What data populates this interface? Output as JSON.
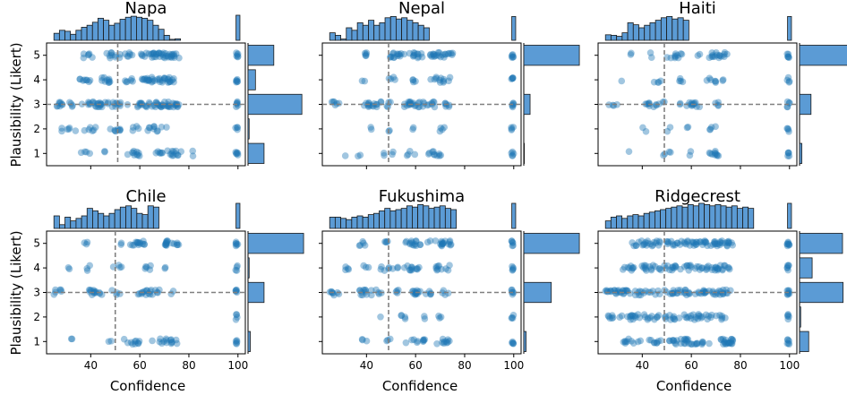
{
  "figure": {
    "ylabel": "Plausibility (Likert)",
    "xlabel": "Confidence",
    "x_ticks": [
      40,
      60,
      80,
      100
    ],
    "y_ticks": [
      1,
      2,
      3,
      4,
      5
    ]
  },
  "colors": {
    "point": "#1f77b4",
    "bar": "#5b9bd5",
    "edge": "#1a1a1a",
    "guide": "#808080"
  },
  "chart_data": [
    {
      "type": "scatter",
      "title": "Napa",
      "xlabel": "",
      "ylabel": "Plausibility (Likert)",
      "xlim": [
        22,
        103
      ],
      "ylim": [
        0.5,
        5.5
      ],
      "median_x": 51,
      "median_y": 3,
      "y_hist": {
        "1": 0.28,
        "2": 0.02,
        "3": 0.94,
        "4": 0.13,
        "5": 0.45
      },
      "x_hist": [
        0.28,
        0.4,
        0.36,
        0.24,
        0.4,
        0.52,
        0.6,
        0.72,
        0.88,
        0.8,
        0.6,
        0.68,
        0.84,
        0.92,
        0.96,
        0.92,
        0.88,
        0.8,
        0.6,
        0.44,
        0.2,
        0.04,
        0.06
      ],
      "conf_100_bar": 1.0,
      "points": [
        {
          "y": 5,
          "segments": [
            [
              37,
              41,
              6
            ],
            [
              46,
              52,
              10
            ],
            [
              54,
              57,
              6
            ],
            [
              59,
              76,
              40
            ],
            [
              99,
              100,
              6
            ]
          ]
        },
        {
          "y": 4,
          "segments": [
            [
              35,
              40,
              8
            ],
            [
              44,
              50,
              10
            ],
            [
              54,
              58,
              6
            ],
            [
              59,
              74,
              34
            ],
            [
              99,
              100,
              6
            ]
          ]
        },
        {
          "y": 3,
          "segments": [
            [
              25,
              33,
              12
            ],
            [
              36,
              53,
              32
            ],
            [
              55,
              76,
              46
            ],
            [
              99,
              100,
              6
            ]
          ]
        },
        {
          "y": 2,
          "segments": [
            [
              28,
              34,
              6
            ],
            [
              37,
              42,
              6
            ],
            [
              46,
              52,
              8
            ],
            [
              56,
              60,
              4
            ],
            [
              63,
              72,
              10
            ],
            [
              99,
              100,
              4
            ]
          ]
        },
        {
          "y": 1,
          "segments": [
            [
              36,
              40,
              4
            ],
            [
              44,
              46,
              2
            ],
            [
              55,
              60,
              10
            ],
            [
              66,
              77,
              18
            ],
            [
              80,
              82,
              2
            ],
            [
              99,
              100,
              6
            ]
          ]
        }
      ]
    },
    {
      "type": "scatter",
      "title": "Nepal",
      "xlabel": "",
      "ylabel": "",
      "xlim": [
        22,
        103
      ],
      "ylim": [
        0.5,
        5.5
      ],
      "median_x": 49,
      "median_y": 3,
      "y_hist": {
        "1": 0.01,
        "2": 0.0,
        "3": 0.11,
        "4": 0.0,
        "5": 0.97
      },
      "x_hist": [
        0.3,
        0.2,
        0.05,
        0.5,
        0.4,
        0.7,
        0.6,
        0.8,
        0.6,
        0.7,
        0.9,
        0.95,
        0.85,
        0.9,
        0.8,
        0.7,
        0.6,
        0.5
      ],
      "conf_100_bar": 0.95,
      "points": [
        {
          "y": 5,
          "segments": [
            [
              38,
              41,
              5
            ],
            [
              49,
              56,
              14
            ],
            [
              57,
              63,
              12
            ],
            [
              66,
              76,
              22
            ],
            [
              99,
              100,
              6
            ]
          ]
        },
        {
          "y": 4,
          "segments": [
            [
              38,
              40,
              2
            ],
            [
              48,
              52,
              4
            ],
            [
              58,
              61,
              4
            ],
            [
              66,
              75,
              12
            ],
            [
              99,
              100,
              5
            ]
          ]
        },
        {
          "y": 3,
          "segments": [
            [
              25,
              29,
              6
            ],
            [
              39,
              46,
              16
            ],
            [
              48,
              50,
              4
            ],
            [
              55,
              68,
              28
            ],
            [
              71,
              74,
              6
            ],
            [
              99,
              100,
              6
            ]
          ]
        },
        {
          "y": 2,
          "segments": [
            [
              40,
              42,
              2
            ],
            [
              49,
              51,
              2
            ],
            [
              58,
              60,
              2
            ],
            [
              69,
              72,
              4
            ],
            [
              99,
              100,
              4
            ]
          ]
        },
        {
          "y": 1,
          "segments": [
            [
              31,
              33,
              1
            ],
            [
              36,
              38,
              2
            ],
            [
              47,
              51,
              4
            ],
            [
              56,
              60,
              4
            ],
            [
              65,
              72,
              10
            ],
            [
              99,
              100,
              5
            ]
          ]
        }
      ]
    },
    {
      "type": "scatter",
      "title": "Haiti",
      "xlabel": "",
      "ylabel": "",
      "xlim": [
        22,
        103
      ],
      "ylim": [
        0.5,
        5.5
      ],
      "median_x": 49,
      "median_y": 3,
      "y_hist": {
        "1": 0.04,
        "2": 0.0,
        "3": 0.2,
        "4": 0.0,
        "5": 0.9
      },
      "x_hist": [
        0.22,
        0.2,
        0.16,
        0.3,
        0.7,
        0.62,
        0.5,
        0.6,
        0.7,
        0.8,
        0.9,
        0.95,
        0.85,
        0.9,
        0.8
      ],
      "conf_100_bar": 0.95,
      "points": [
        {
          "y": 5,
          "segments": [
            [
              34,
              37,
              2
            ],
            [
              43,
              45,
              2
            ],
            [
              50,
              57,
              10
            ],
            [
              62,
              64,
              2
            ],
            [
              67,
              75,
              16
            ],
            [
              99,
              100,
              6
            ]
          ]
        },
        {
          "y": 4,
          "segments": [
            [
              31,
              33,
              1
            ],
            [
              44,
              48,
              4
            ],
            [
              55,
              58,
              4
            ],
            [
              66,
              70,
              6
            ],
            [
              72,
              74,
              2
            ],
            [
              99,
              100,
              4
            ]
          ]
        },
        {
          "y": 3,
          "segments": [
            [
              26,
              30,
              4
            ],
            [
              41,
              47,
              10
            ],
            [
              48,
              49,
              2
            ],
            [
              55,
              64,
              14
            ],
            [
              68,
              72,
              4
            ],
            [
              99,
              100,
              5
            ]
          ]
        },
        {
          "y": 2,
          "segments": [
            [
              40,
              42,
              2
            ],
            [
              50,
              52,
              2
            ],
            [
              57,
              59,
              2
            ],
            [
              67,
              70,
              4
            ],
            [
              99,
              100,
              4
            ]
          ]
        },
        {
          "y": 1,
          "segments": [
            [
              34,
              36,
              1
            ],
            [
              48,
              52,
              4
            ],
            [
              59,
              61,
              2
            ],
            [
              66,
              72,
              10
            ],
            [
              99,
              100,
              5
            ]
          ]
        }
      ]
    },
    {
      "type": "scatter",
      "title": "Chile",
      "xlabel": "Confidence",
      "ylabel": "Plausibility (Likert)",
      "xlim": [
        22,
        103
      ],
      "ylim": [
        0.5,
        5.5
      ],
      "median_x": 50,
      "median_y": 3,
      "y_hist": {
        "1": 0.04,
        "2": 0.0,
        "3": 0.28,
        "4": 0.02,
        "5": 0.97
      },
      "x_hist": [
        0.5,
        0.15,
        0.45,
        0.3,
        0.4,
        0.5,
        0.8,
        0.7,
        0.6,
        0.5,
        0.6,
        0.75,
        0.85,
        0.9,
        0.8,
        0.6,
        0.55,
        0.9,
        0.85
      ],
      "conf_100_bar": 1.0,
      "points": [
        {
          "y": 5,
          "segments": [
            [
              37,
              39,
              3
            ],
            [
              51,
              53,
              2
            ],
            [
              56,
              62,
              14
            ],
            [
              70,
              76,
              16
            ],
            [
              99,
              100,
              6
            ]
          ]
        },
        {
          "y": 4,
          "segments": [
            [
              30,
              32,
              2
            ],
            [
              38,
              40,
              3
            ],
            [
              49,
              53,
              4
            ],
            [
              62,
              65,
              5
            ],
            [
              70,
              72,
              2
            ],
            [
              99,
              100,
              4
            ]
          ]
        },
        {
          "y": 3,
          "segments": [
            [
              25,
              29,
              6
            ],
            [
              38,
              45,
              14
            ],
            [
              48,
              52,
              4
            ],
            [
              59,
              68,
              18
            ],
            [
              72,
              74,
              2
            ],
            [
              99,
              100,
              5
            ]
          ]
        },
        {
          "y": 2,
          "segments": [
            [
              99,
              100,
              4
            ]
          ]
        },
        {
          "y": 1,
          "segments": [
            [
              31,
              33,
              2
            ],
            [
              47,
              49,
              2
            ],
            [
              52,
              60,
              10
            ],
            [
              64,
              66,
              1
            ],
            [
              68,
              76,
              14
            ],
            [
              99,
              100,
              5
            ]
          ]
        }
      ]
    },
    {
      "type": "scatter",
      "title": "Fukushima",
      "xlabel": "Confidence",
      "ylabel": "",
      "xlim": [
        22,
        103
      ],
      "ylim": [
        0.5,
        5.5
      ],
      "median_x": 49,
      "median_y": 3,
      "y_hist": {
        "1": 0.04,
        "2": 0.0,
        "3": 0.48,
        "4": 0.0,
        "5": 0.97
      },
      "x_hist": [
        0.45,
        0.45,
        0.4,
        0.35,
        0.45,
        0.5,
        0.45,
        0.55,
        0.6,
        0.7,
        0.8,
        0.7,
        0.75,
        0.8,
        0.9,
        0.85,
        0.95,
        0.9,
        0.8,
        0.85,
        0.9,
        0.8,
        0.75
      ],
      "conf_100_bar": 1.0,
      "points": [
        {
          "y": 5,
          "segments": [
            [
              36,
              40,
              5
            ],
            [
              47,
              51,
              4
            ],
            [
              55,
              62,
              14
            ],
            [
              64,
              66,
              2
            ],
            [
              68,
              75,
              16
            ],
            [
              99,
              100,
              6
            ]
          ]
        },
        {
          "y": 4,
          "segments": [
            [
              30,
              33,
              4
            ],
            [
              38,
              41,
              3
            ],
            [
              45,
              48,
              3
            ],
            [
              49,
              53,
              5
            ],
            [
              55,
              62,
              12
            ],
            [
              68,
              74,
              10
            ],
            [
              99,
              100,
              5
            ]
          ]
        },
        {
          "y": 3,
          "segments": [
            [
              25,
              30,
              8
            ],
            [
              37,
              47,
              16
            ],
            [
              52,
              56,
              4
            ],
            [
              58,
              68,
              18
            ],
            [
              70,
              74,
              4
            ],
            [
              99,
              100,
              6
            ]
          ]
        },
        {
          "y": 2,
          "segments": [
            [
              45,
              46,
              1
            ],
            [
              53,
              57,
              4
            ],
            [
              63,
              66,
              2
            ],
            [
              68,
              72,
              3
            ],
            [
              99,
              100,
              4
            ]
          ]
        },
        {
          "y": 1,
          "segments": [
            [
              38,
              41,
              3
            ],
            [
              47,
              50,
              3
            ],
            [
              56,
              64,
              10
            ],
            [
              68,
              74,
              10
            ],
            [
              99,
              100,
              5
            ]
          ]
        }
      ]
    },
    {
      "type": "scatter",
      "title": "Ridgecrest",
      "xlabel": "Confidence",
      "ylabel": "",
      "xlim": [
        22,
        103
      ],
      "ylim": [
        0.5,
        5.5
      ],
      "median_x": 49,
      "median_y": 3,
      "y_hist": {
        "1": 0.16,
        "2": 0.02,
        "3": 0.76,
        "4": 0.22,
        "5": 0.75
      },
      "x_hist": [
        0.3,
        0.45,
        0.5,
        0.4,
        0.5,
        0.55,
        0.5,
        0.6,
        0.65,
        0.7,
        0.75,
        0.8,
        0.85,
        0.9,
        0.85,
        0.95,
        0.9,
        1.0,
        0.95,
        0.9,
        0.95,
        0.9,
        0.85,
        0.9,
        0.8,
        0.85,
        0.8
      ],
      "conf_100_bar": 1.0,
      "points": [
        {
          "y": 5,
          "segments": [
            [
              35,
              48,
              22
            ],
            [
              49,
              56,
              12
            ],
            [
              57,
              68,
              24
            ],
            [
              69,
              77,
              22
            ],
            [
              99,
              100,
              8
            ]
          ]
        },
        {
          "y": 4,
          "segments": [
            [
              32,
              48,
              24
            ],
            [
              49,
              56,
              12
            ],
            [
              57,
              76,
              34
            ],
            [
              99,
              100,
              6
            ]
          ]
        },
        {
          "y": 3,
          "segments": [
            [
              25,
              48,
              40
            ],
            [
              49,
              76,
              50
            ],
            [
              99,
              100,
              8
            ]
          ]
        },
        {
          "y": 2,
          "segments": [
            [
              26,
              32,
              8
            ],
            [
              34,
              48,
              22
            ],
            [
              49,
              56,
              10
            ],
            [
              57,
              74,
              26
            ],
            [
              99,
              100,
              5
            ]
          ]
        },
        {
          "y": 1,
          "segments": [
            [
              32,
              40,
              10
            ],
            [
              42,
              48,
              8
            ],
            [
              51,
              56,
              10
            ],
            [
              57,
              68,
              20
            ],
            [
              70,
              77,
              20
            ],
            [
              99,
              100,
              6
            ]
          ]
        }
      ]
    }
  ]
}
